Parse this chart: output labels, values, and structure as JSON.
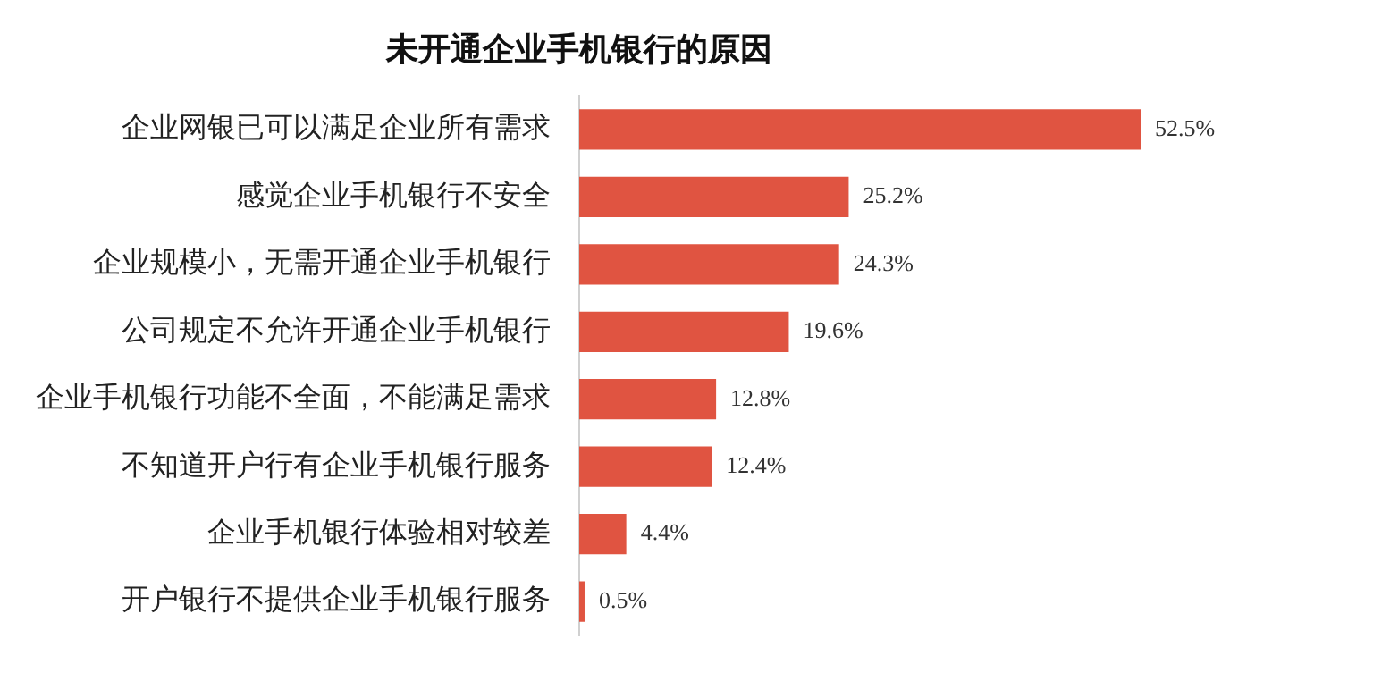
{
  "chart_data": {
    "type": "bar",
    "orientation": "horizontal",
    "title": "未开通企业手机银行的原因",
    "categories": [
      "企业网银已可以满足企业所有需求",
      "感觉企业手机银行不安全",
      "企业规模小，无需开通企业手机银行",
      "公司规定不允许开通企业手机银行",
      "企业手机银行功能不全面，不能满足需求",
      "不知道开户行有企业手机银行服务",
      "企业手机银行体验相对较差",
      "开户银行不提供企业手机银行服务"
    ],
    "values": [
      52.5,
      25.2,
      24.3,
      19.6,
      12.8,
      12.4,
      4.4,
      0.5
    ],
    "value_labels": [
      "52.5%",
      "25.2%",
      "24.3%",
      "19.6%",
      "12.8%",
      "12.4%",
      "4.4%",
      "0.5%"
    ],
    "color": "#e05441",
    "legend": false
  }
}
